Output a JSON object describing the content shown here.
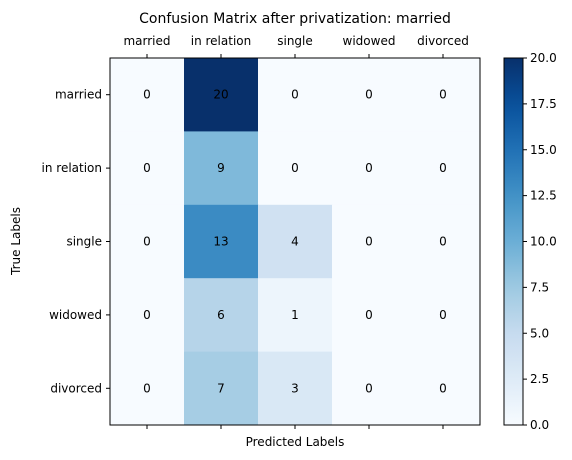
{
  "chart_data": {
    "type": "heatmap",
    "title": "Confusion Matrix after privatization: married",
    "xlabel": "Predicted Labels",
    "ylabel": "True Labels",
    "x_categories": [
      "married",
      "in relation",
      "single",
      "widowed",
      "divorced"
    ],
    "y_categories": [
      "married",
      "in relation",
      "single",
      "widowed",
      "divorced"
    ],
    "values": [
      [
        0,
        20,
        0,
        0,
        0
      ],
      [
        0,
        9,
        0,
        0,
        0
      ],
      [
        0,
        13,
        4,
        0,
        0
      ],
      [
        0,
        6,
        1,
        0,
        0
      ],
      [
        0,
        7,
        3,
        0,
        0
      ]
    ],
    "colorscale": "Blues",
    "vmin": 0,
    "vmax": 20,
    "colorbar_ticks": [
      "0.0",
      "2.5",
      "5.0",
      "7.5",
      "10.0",
      "12.5",
      "15.0",
      "17.5",
      "20.0"
    ],
    "x_tick_position": "top",
    "grid": false
  }
}
